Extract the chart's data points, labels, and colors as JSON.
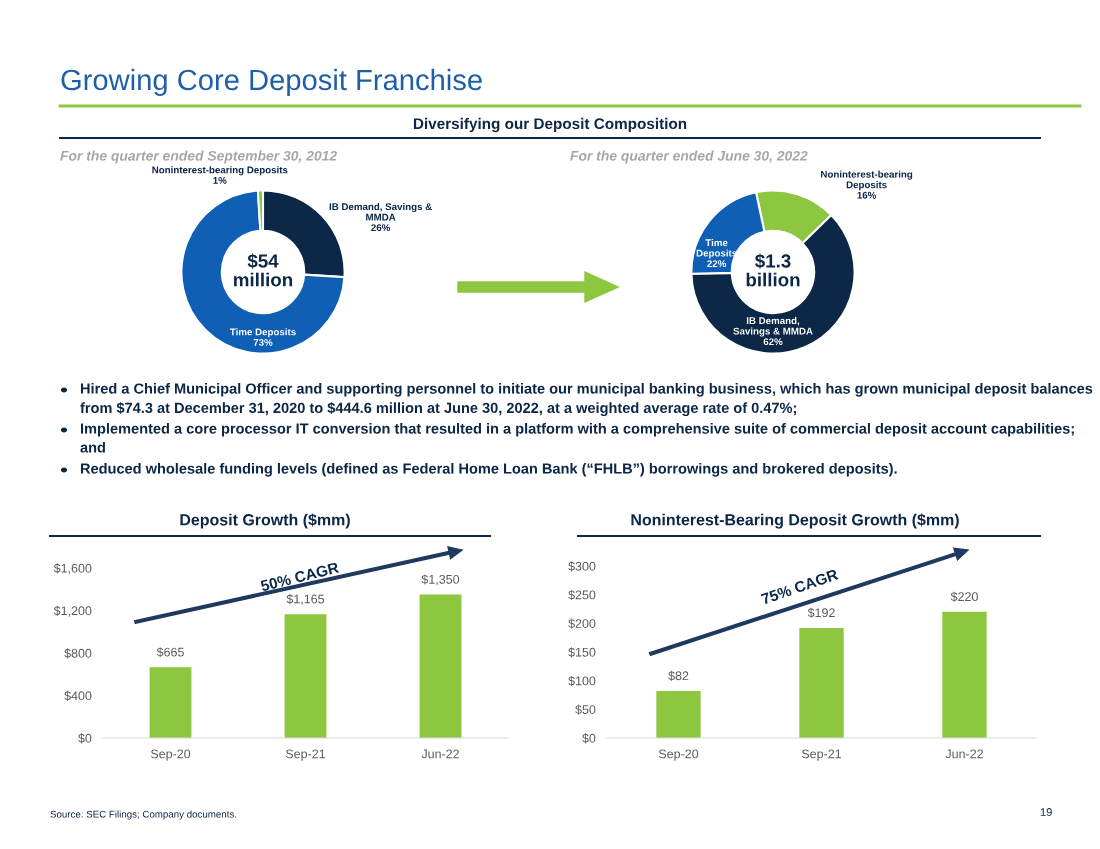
{
  "chart_data": [
    {
      "type": "other",
      "title": "Growing Core Deposit Franchise",
      "subtitle": "Diversifying our Deposit Composition",
      "annotations": [
        "Hired a Chief Municipal Officer and supporting personnel to initiate our municipal banking business, which has grown municipal deposit balances from $74.3 at December 31, 2020 to $444.6 million at June 30, 2022, at a weighted average rate of 0.47%;",
        "Implemented a core processor IT conversion that resulted in a platform with a comprehensive suite of commercial deposit account capabilities; and",
        "Reduced wholesale funding levels (defined as Federal Home Loan Bank (“FHLB”) borrowings and brokered deposits).",
        "Source: SEC Filings; Company documents.",
        "19"
      ]
    },
    {
      "type": "donut",
      "subtitle": "For the quarter ended September 30, 2012",
      "categories": [
        "IB Demand, Savings &\nMMDA",
        "Time Deposits",
        "Noninterest-bearing Deposits"
      ],
      "values": [
        26,
        73,
        1
      ],
      "colors": [
        "#0d2747",
        "#0f5fb4",
        "#8dc63f"
      ],
      "value_labels": [
        "26%",
        "73%",
        "1%"
      ],
      "annotations": [
        "$54\nmillion"
      ]
    },
    {
      "type": "donut",
      "subtitle": "For the quarter ended June 30, 2022",
      "categories": [
        "Noninterest-bearing\nDeposits",
        "IB Demand,\nSavings & MMDA",
        "Time\nDeposits"
      ],
      "values": [
        16,
        62,
        22
      ],
      "colors": [
        "#8dc63f",
        "#0d2747",
        "#0f5fb4"
      ],
      "value_labels": [
        "16%",
        "62%",
        "22%"
      ],
      "annotations": [
        "$1.3\nbillion"
      ]
    },
    {
      "type": "bar",
      "title": "Deposit Growth ($mm)",
      "categories": [
        "Sep-20",
        "Sep-21",
        "Jun-22"
      ],
      "values": [
        665,
        1165,
        1350
      ],
      "color": "#8dc63f",
      "value_labels": [
        "$665",
        "$1,165",
        "$1,350"
      ],
      "ylim": [
        0,
        1600
      ],
      "yticks": [
        {
          "value": 0,
          "label": "$0"
        },
        {
          "value": 400,
          "label": "$400"
        },
        {
          "value": 800,
          "label": "$800"
        },
        {
          "value": 1200,
          "label": "$1,200"
        },
        {
          "value": 1600,
          "label": "$1,600"
        }
      ],
      "annotations": [
        "50% CAGR"
      ]
    },
    {
      "type": "bar",
      "title": "Noninterest-Bearing Deposit Growth ($mm)",
      "categories": [
        "Sep-20",
        "Sep-21",
        "Jun-22"
      ],
      "values": [
        82,
        192,
        220
      ],
      "color": "#8dc63f",
      "value_labels": [
        "$82",
        "$192",
        "$220"
      ],
      "ylim": [
        0,
        300
      ],
      "yticks": [
        {
          "value": 0,
          "label": "$0"
        },
        {
          "value": 50,
          "label": "$50"
        },
        {
          "value": 100,
          "label": "$100"
        },
        {
          "value": 150,
          "label": "$150"
        },
        {
          "value": 200,
          "label": "$200"
        },
        {
          "value": 250,
          "label": "$250"
        },
        {
          "value": 300,
          "label": "$300"
        }
      ],
      "annotations": [
        "75% CAGR"
      ]
    }
  ]
}
